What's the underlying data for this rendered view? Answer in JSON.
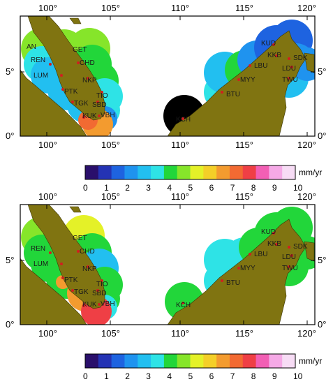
{
  "colors": {
    "land": "#807411",
    "frame": "#000000",
    "station": "#d11f1f",
    "scale": [
      "#2a0f6b",
      "#2433b4",
      "#1e63e0",
      "#1f93ef",
      "#22bff0",
      "#2ee3e6",
      "#22d63a",
      "#86e52a",
      "#e4f128",
      "#f4cf28",
      "#f39b2f",
      "#f26a32",
      "#ef3f45",
      "#f25fb4",
      "#f5a9e6",
      "#f7dcf5"
    ]
  },
  "maps": [
    {
      "x_ticks": [
        "100°",
        "105°",
        "110°",
        "115°",
        "120°"
      ],
      "y_ticks": [
        "0°",
        "5°"
      ],
      "stations": [
        {
          "code": "AN",
          "color": "#86e52a"
        },
        {
          "code": "GET",
          "color": "#86e52a"
        },
        {
          "code": "REN",
          "color": "#2ee3e6"
        },
        {
          "code": "CHD",
          "color": "#22d63a"
        },
        {
          "code": "LUM",
          "color": "#22bff0"
        },
        {
          "code": "NKP",
          "color": "#22d63a"
        },
        {
          "code": "PTK",
          "color": "#22bff0"
        },
        {
          "code": "TIO",
          "color": "#2ee3e6"
        },
        {
          "code": "TGK",
          "color": "#22bff0"
        },
        {
          "code": "SBD",
          "color": "#2ee3e6"
        },
        {
          "code": "KUK",
          "color": "#f39b2f"
        },
        {
          "code": "VBH",
          "color": "#1f93ef"
        },
        {
          "code": "KCH",
          "color": "#000000"
        },
        {
          "code": "BTU",
          "color": "#2ee3e6"
        },
        {
          "code": "MYY",
          "color": "#22d63a"
        },
        {
          "code": "LBU",
          "color": "#1f93ef"
        },
        {
          "code": "KUD",
          "color": "#1e63e0"
        },
        {
          "code": "KKB",
          "color": "#1e63e0"
        },
        {
          "code": "SDK",
          "color": "#1f93ef"
        },
        {
          "code": "LDU",
          "color": "#1f93ef"
        },
        {
          "code": "TWU",
          "color": "#22bff0"
        }
      ]
    },
    {
      "x_ticks": [
        "100°",
        "105°",
        "110°",
        "115°",
        "120°"
      ],
      "y_ticks": [
        "0°",
        "5°"
      ],
      "stations": [
        {
          "code": "GET",
          "color": "#e4f128"
        },
        {
          "code": "REN",
          "color": "#22d63a"
        },
        {
          "code": "CHD",
          "color": "#22d63a"
        },
        {
          "code": "LUM",
          "color": "#22d63a"
        },
        {
          "code": "NKP",
          "color": "#22bff0"
        },
        {
          "code": "PTK",
          "color": "#f39b2f"
        },
        {
          "code": "TIO",
          "color": "#22d63a"
        },
        {
          "code": "TGK",
          "color": "#f39b2f"
        },
        {
          "code": "SBD",
          "color": "#22d63a"
        },
        {
          "code": "KUK",
          "color": "#ef3f45"
        },
        {
          "code": "VBH",
          "color": "#2ee3e6"
        },
        {
          "code": "KCH",
          "color": "#22d63a"
        },
        {
          "code": "BTU",
          "color": "#2ee3e6"
        },
        {
          "code": "MYY",
          "color": "#2ee3e6"
        },
        {
          "code": "LBU",
          "color": "#22d63a"
        },
        {
          "code": "KUD",
          "color": "#22d63a"
        },
        {
          "code": "KKB",
          "color": "#22d63a"
        },
        {
          "code": "SDK",
          "color": "#22d63a"
        },
        {
          "code": "LDU",
          "color": "#22d63a"
        },
        {
          "code": "TWU",
          "color": "#22d63a"
        }
      ]
    }
  ],
  "colorbar": {
    "labels": [
      "0",
      "1",
      "2",
      "3",
      "4",
      "5",
      "6",
      "7",
      "8",
      "9",
      "10"
    ],
    "unit": "mm/yr"
  }
}
